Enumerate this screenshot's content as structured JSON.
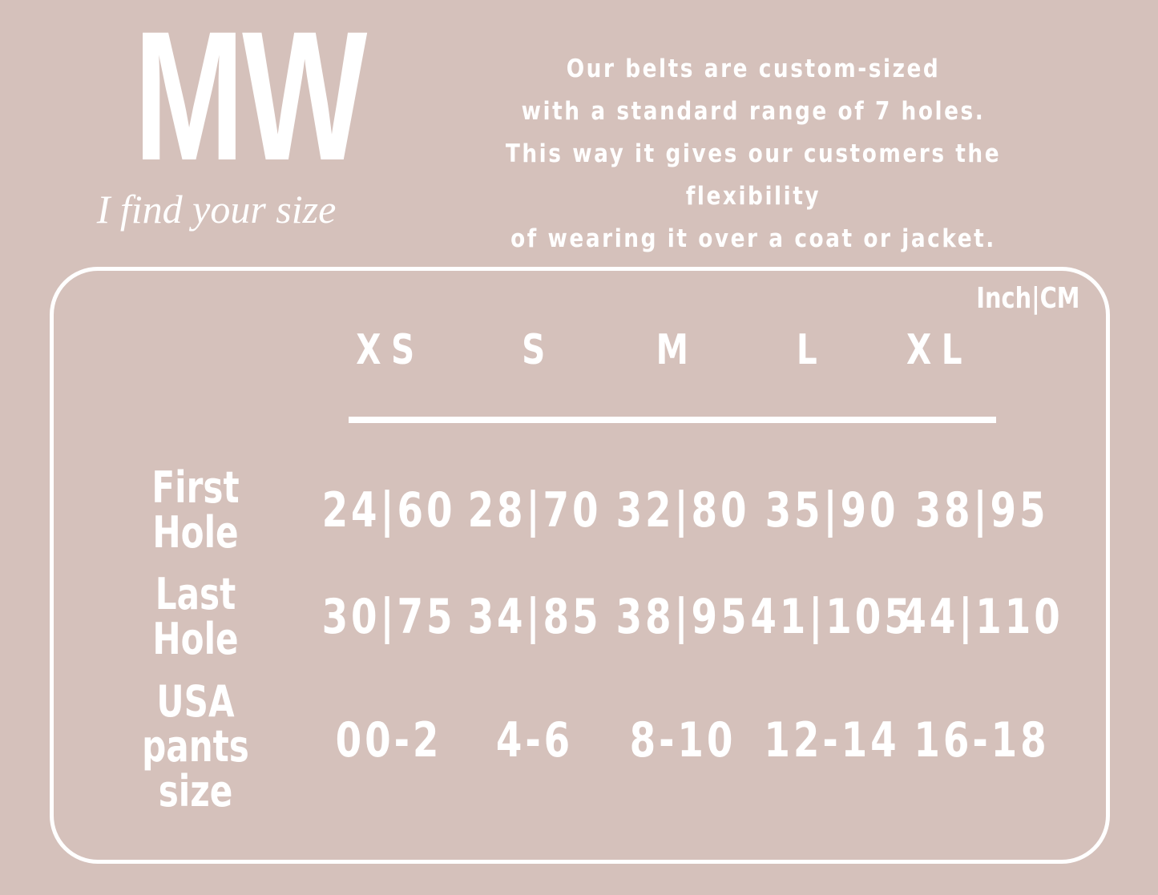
{
  "header": {
    "logo": "MW",
    "tagline": "I find your size",
    "description": [
      "Our belts are custom-sized",
      "with a standard range of 7 holes.",
      "This way it gives our customers the flexibility",
      "of wearing it over a coat or jacket."
    ]
  },
  "table": {
    "unit": "Inch|CM",
    "columns": [
      "XS",
      "S",
      "M",
      "L",
      "XL"
    ],
    "rows": [
      {
        "label": "First Hole",
        "cells": [
          "24|60",
          "28|70",
          "32|80",
          "35|90",
          "38|95"
        ]
      },
      {
        "label": "Last Hole",
        "cells": [
          "30|75",
          "34|85",
          "38|95",
          "41|105",
          "44|110"
        ]
      },
      {
        "label": "USA pants size",
        "cells": [
          "00-2",
          "4-6",
          "8-10",
          "12-14",
          "16-18"
        ]
      }
    ]
  }
}
